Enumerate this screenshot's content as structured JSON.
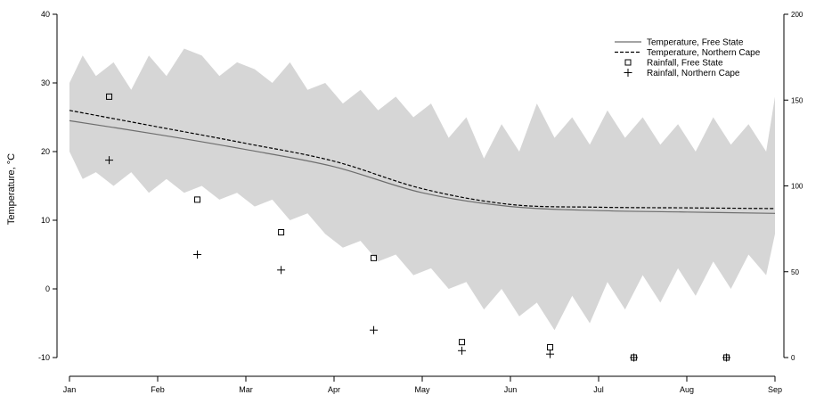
{
  "chart_data": {
    "type": "line",
    "title": "",
    "ylabel": "Temperature, °C",
    "y2label": "",
    "xlabel": "",
    "x_ticks": [
      "Jan",
      "Feb",
      "Mar",
      "Apr",
      "May",
      "Jun",
      "Jul",
      "Aug",
      "Sep"
    ],
    "ylim": [
      -10,
      40
    ],
    "y_ticks": [
      "-10",
      "0",
      "10",
      "20",
      "30",
      "40"
    ],
    "y2lim": [
      0,
      200
    ],
    "y2_ticks": [
      "0",
      "50",
      "100",
      "150",
      "200"
    ],
    "legend_position": "top-right",
    "legend": [
      {
        "label": "Temperature, Free State",
        "marker": "solid-line"
      },
      {
        "label": "Temperature, Northern Cape",
        "marker": "dashed-line"
      },
      {
        "label": "Rainfall, Free State",
        "marker": "square"
      },
      {
        "label": "Rainfall, Northern Cape",
        "marker": "plus"
      }
    ],
    "series": [
      {
        "name": "Temperature, Free State",
        "axis": "left",
        "style": "solid",
        "color": "#6e6e6e",
        "x": [
          0,
          1,
          2,
          3,
          4,
          5,
          6,
          7,
          8
        ],
        "y": [
          24.5,
          22.5,
          20.3,
          17.8,
          14.0,
          12.0,
          11.4,
          11.2,
          11.0
        ]
      },
      {
        "name": "Temperature, Northern Cape",
        "axis": "left",
        "style": "dashed",
        "color": "#000000",
        "x": [
          0,
          1,
          2,
          3,
          4,
          5,
          6,
          7,
          8
        ],
        "y": [
          26.0,
          23.6,
          21.2,
          18.6,
          14.6,
          12.3,
          11.9,
          11.8,
          11.7
        ]
      },
      {
        "name": "Rainfall, Free State",
        "axis": "right",
        "marker": "square",
        "x": [
          0.45,
          1.45,
          2.4,
          3.45,
          4.45,
          5.45,
          6.4,
          7.45
        ],
        "y": [
          152,
          92,
          73,
          58,
          9,
          6,
          0,
          0
        ]
      },
      {
        "name": "Rainfall, Northern Cape",
        "axis": "right",
        "marker": "plus",
        "x": [
          0.45,
          1.45,
          2.4,
          3.45,
          4.45,
          5.45,
          6.4,
          7.45
        ],
        "y": [
          115,
          60,
          51,
          16,
          4,
          2,
          0,
          0
        ]
      }
    ],
    "band": {
      "name": "daily temperature range",
      "color": "#d6d6d6",
      "x": [
        0,
        0.15,
        0.3,
        0.5,
        0.7,
        0.9,
        1.1,
        1.3,
        1.5,
        1.7,
        1.9,
        2.1,
        2.3,
        2.5,
        2.7,
        2.9,
        3.1,
        3.3,
        3.5,
        3.7,
        3.9,
        4.1,
        4.3,
        4.5,
        4.7,
        4.9,
        5.1,
        5.3,
        5.5,
        5.7,
        5.9,
        6.1,
        6.3,
        6.5,
        6.7,
        6.9,
        7.1,
        7.3,
        7.5,
        7.7,
        7.9,
        8.0
      ],
      "upper": [
        30,
        34,
        31,
        33,
        29,
        34,
        31,
        35,
        34,
        31,
        33,
        32,
        30,
        33,
        29,
        30,
        27,
        29,
        26,
        28,
        25,
        27,
        22,
        25,
        19,
        24,
        20,
        27,
        22,
        25,
        21,
        26,
        22,
        25,
        21,
        24,
        20,
        25,
        21,
        24,
        20,
        28
      ],
      "lower": [
        20,
        16,
        17,
        15,
        17,
        14,
        16,
        14,
        15,
        13,
        14,
        12,
        13,
        10,
        11,
        8,
        6,
        7,
        4,
        5,
        2,
        3,
        0,
        1,
        -3,
        0,
        -4,
        -2,
        -6,
        -1,
        -5,
        1,
        -3,
        2,
        -2,
        3,
        -1,
        4,
        0,
        5,
        2,
        8
      ]
    }
  }
}
